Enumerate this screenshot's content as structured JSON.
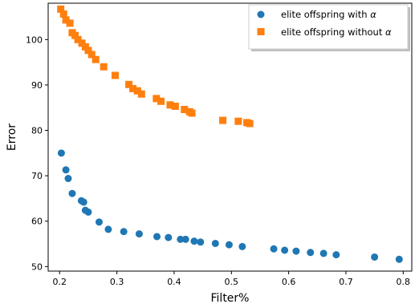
{
  "chart_data": {
    "type": "scatter",
    "xlabel": "Filter%",
    "ylabel": "Error",
    "xlim": [
      0.18,
      0.815
    ],
    "ylim": [
      49,
      108
    ],
    "xticks": [
      0.2,
      0.3,
      0.4,
      0.5,
      0.6,
      0.7,
      0.8
    ],
    "yticks": [
      50,
      60,
      70,
      80,
      90,
      100
    ],
    "xtick_labels": [
      "0.2",
      "0.3",
      "0.4",
      "0.5",
      "0.6",
      "0.7",
      "0.8"
    ],
    "ytick_labels": [
      "50",
      "60",
      "70",
      "80",
      "90",
      "100"
    ],
    "grid": false,
    "legend_position": "top-right",
    "series": [
      {
        "name": "elite offspring with α",
        "legend_text": "elite offspring with",
        "legend_symbol": "α",
        "marker": "circle",
        "color": "#1f77b4",
        "points": [
          [
            0.203,
            75.0
          ],
          [
            0.211,
            71.3
          ],
          [
            0.215,
            69.4
          ],
          [
            0.222,
            66.1
          ],
          [
            0.238,
            64.5
          ],
          [
            0.242,
            64.2
          ],
          [
            0.245,
            62.4
          ],
          [
            0.25,
            62.0
          ],
          [
            0.269,
            59.8
          ],
          [
            0.285,
            58.2
          ],
          [
            0.312,
            57.7
          ],
          [
            0.339,
            57.2
          ],
          [
            0.37,
            56.6
          ],
          [
            0.39,
            56.4
          ],
          [
            0.411,
            56.0
          ],
          [
            0.42,
            56.0
          ],
          [
            0.435,
            55.6
          ],
          [
            0.446,
            55.4
          ],
          [
            0.472,
            55.1
          ],
          [
            0.496,
            54.8
          ],
          [
            0.519,
            54.4
          ],
          [
            0.574,
            53.9
          ],
          [
            0.593,
            53.6
          ],
          [
            0.613,
            53.4
          ],
          [
            0.638,
            53.1
          ],
          [
            0.661,
            52.9
          ],
          [
            0.683,
            52.6
          ],
          [
            0.75,
            52.1
          ],
          [
            0.793,
            51.6
          ]
        ]
      },
      {
        "name": "elite offspring without α",
        "legend_text": "elite offspring without",
        "legend_symbol": "α",
        "marker": "square",
        "color": "#ff7f0e",
        "points": [
          [
            0.202,
            106.7
          ],
          [
            0.207,
            105.6
          ],
          [
            0.211,
            104.3
          ],
          [
            0.218,
            103.6
          ],
          [
            0.222,
            101.5
          ],
          [
            0.227,
            100.9
          ],
          [
            0.232,
            100.0
          ],
          [
            0.239,
            99.2
          ],
          [
            0.245,
            98.4
          ],
          [
            0.25,
            97.6
          ],
          [
            0.256,
            96.7
          ],
          [
            0.263,
            95.6
          ],
          [
            0.277,
            94.0
          ],
          [
            0.297,
            92.1
          ],
          [
            0.321,
            90.1
          ],
          [
            0.328,
            89.2
          ],
          [
            0.336,
            88.7
          ],
          [
            0.343,
            88.0
          ],
          [
            0.369,
            87.0
          ],
          [
            0.377,
            86.4
          ],
          [
            0.393,
            85.6
          ],
          [
            0.402,
            85.3
          ],
          [
            0.418,
            84.6
          ],
          [
            0.427,
            84.1
          ],
          [
            0.431,
            83.8
          ],
          [
            0.485,
            82.2
          ],
          [
            0.512,
            82.0
          ],
          [
            0.527,
            81.7
          ],
          [
            0.532,
            81.5
          ]
        ]
      }
    ]
  }
}
